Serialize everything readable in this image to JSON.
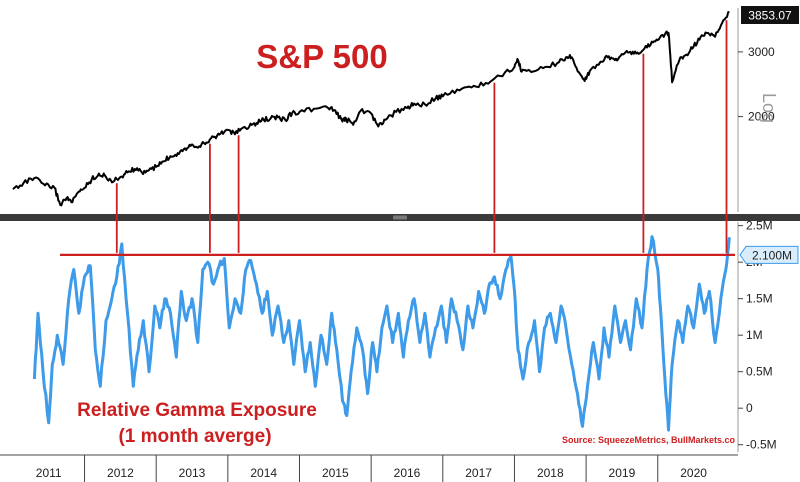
{
  "chart_data": [
    {
      "type": "line",
      "title": "S&P 500",
      "scale": "log",
      "scale_label": "Log",
      "x_categories": [
        "2011",
        "2012",
        "2013",
        "2014",
        "2015",
        "2016",
        "2017",
        "2018",
        "2019",
        "2020"
      ],
      "y_ticks": [
        {
          "value": 2000,
          "label": "2000"
        },
        {
          "value": 3000,
          "label": "3000"
        }
      ],
      "ylim": [
        1100,
        3950
      ],
      "last_value_label": "3853.07",
      "colors": {
        "line": "#000000",
        "last_value_box": "#111111"
      },
      "series": [
        {
          "x": [
            2011.0,
            2011.15,
            2011.3,
            2011.45,
            2011.58,
            2011.66,
            2011.75,
            2011.83,
            2011.92,
            2012.0,
            2012.1,
            2012.2,
            2012.3,
            2012.4,
            2012.5,
            2012.6,
            2012.7,
            2012.8,
            2012.9,
            2013.0,
            2013.1,
            2013.2,
            2013.3,
            2013.4,
            2013.5,
            2013.6,
            2013.7,
            2013.8,
            2013.9,
            2014.0,
            2014.1,
            2014.2,
            2014.3,
            2014.4,
            2014.5,
            2014.6,
            2014.7,
            2014.8,
            2014.9,
            2015.0,
            2015.2,
            2015.4,
            2015.5,
            2015.6,
            2015.65,
            2015.75,
            2015.85,
            2016.0,
            2016.1,
            2016.2,
            2016.35,
            2016.5,
            2016.6,
            2016.75,
            2016.9,
            2017.0,
            2017.2,
            2017.4,
            2017.6,
            2017.8,
            2018.0,
            2018.05,
            2018.1,
            2018.2,
            2018.4,
            2018.6,
            2018.72,
            2018.8,
            2018.9,
            2018.98,
            2019.05,
            2019.2,
            2019.3,
            2019.4,
            2019.5,
            2019.6,
            2019.7,
            2019.8,
            2019.9,
            2020.0,
            2020.1,
            2020.15,
            2020.2,
            2020.3,
            2020.4,
            2020.5,
            2020.6,
            2020.7,
            2020.8,
            2020.9,
            2021.0
          ],
          "values": [
            1270,
            1320,
            1360,
            1300,
            1280,
            1150,
            1200,
            1170,
            1250,
            1280,
            1350,
            1400,
            1370,
            1330,
            1370,
            1410,
            1440,
            1410,
            1430,
            1460,
            1510,
            1560,
            1590,
            1640,
            1680,
            1660,
            1700,
            1760,
            1800,
            1840,
            1790,
            1860,
            1880,
            1920,
            1960,
            1980,
            1990,
            1960,
            2050,
            2060,
            2100,
            2110,
            2080,
            1940,
            1970,
            1900,
            2070,
            2040,
            1880,
            1960,
            2060,
            2110,
            2170,
            2160,
            2240,
            2270,
            2370,
            2400,
            2470,
            2580,
            2730,
            2850,
            2650,
            2680,
            2710,
            2800,
            2900,
            2900,
            2640,
            2500,
            2660,
            2820,
            2900,
            2850,
            2960,
            2990,
            2970,
            3040,
            3140,
            3230,
            3350,
            3380,
            2480,
            2840,
            2950,
            3100,
            3300,
            3380,
            3300,
            3600,
            3853
          ]
        }
      ]
    },
    {
      "type": "line",
      "title": "Relative Gamma Exposure",
      "subtitle": "(1 month averge)",
      "source": "Source: SqueezeMetrics, BullMarkets.co",
      "x_categories": [
        "2011",
        "2012",
        "2013",
        "2014",
        "2015",
        "2016",
        "2017",
        "2018",
        "2019",
        "2020"
      ],
      "y_ticks": [
        {
          "value": -0.5,
          "label": "-0.5M"
        },
        {
          "value": 0,
          "label": "0"
        },
        {
          "value": 0.5,
          "label": "0.5M"
        },
        {
          "value": 1,
          "label": "1M"
        },
        {
          "value": 1.5,
          "label": "1.5M"
        },
        {
          "value": 2,
          "label": "2M"
        },
        {
          "value": 2.5,
          "label": "2.5M"
        }
      ],
      "ylim": [
        -0.6,
        2.55
      ],
      "reference_line": {
        "value": 2.1,
        "label": "2.100M"
      },
      "last_value": 2.34,
      "colors": {
        "line": "#3d9bea",
        "reference": "#cc1f1f",
        "label_box": "#d8ecfb",
        "label_border": "#3d9bea"
      },
      "series": [
        {
          "x": [
            2011.3,
            2011.35,
            2011.42,
            2011.5,
            2011.55,
            2011.62,
            2011.7,
            2011.78,
            2011.85,
            2011.92,
            2012.0,
            2012.08,
            2012.15,
            2012.22,
            2012.3,
            2012.38,
            2012.45,
            2012.52,
            2012.6,
            2012.68,
            2012.75,
            2012.82,
            2012.9,
            2012.98,
            2013.05,
            2013.12,
            2013.2,
            2013.28,
            2013.35,
            2013.42,
            2013.5,
            2013.58,
            2013.65,
            2013.72,
            2013.8,
            2013.88,
            2013.95,
            2014.02,
            2014.1,
            2014.18,
            2014.25,
            2014.32,
            2014.4,
            2014.48,
            2014.55,
            2014.62,
            2014.7,
            2014.78,
            2014.85,
            2014.92,
            2015.0,
            2015.08,
            2015.15,
            2015.22,
            2015.3,
            2015.38,
            2015.45,
            2015.52,
            2015.6,
            2015.66,
            2015.72,
            2015.8,
            2015.88,
            2015.95,
            2016.02,
            2016.08,
            2016.15,
            2016.22,
            2016.3,
            2016.38,
            2016.45,
            2016.52,
            2016.6,
            2016.68,
            2016.75,
            2016.82,
            2016.9,
            2016.98,
            2017.05,
            2017.12,
            2017.2,
            2017.28,
            2017.35,
            2017.42,
            2017.5,
            2017.58,
            2017.65,
            2017.72,
            2017.8,
            2017.88,
            2017.95,
            2018.0,
            2018.05,
            2018.12,
            2018.2,
            2018.28,
            2018.35,
            2018.42,
            2018.5,
            2018.58,
            2018.65,
            2018.72,
            2018.8,
            2018.88,
            2018.95,
            2019.02,
            2019.1,
            2019.18,
            2019.25,
            2019.32,
            2019.4,
            2019.48,
            2019.55,
            2019.62,
            2019.7,
            2019.78,
            2019.85,
            2019.92,
            2020.0,
            2020.05,
            2020.1,
            2020.15,
            2020.2,
            2020.28,
            2020.35,
            2020.42,
            2020.5,
            2020.58,
            2020.65,
            2020.72,
            2020.8,
            2020.88,
            2020.95,
            2021.0
          ],
          "values": [
            0.4,
            1.3,
            0.5,
            -0.2,
            0.6,
            1.0,
            0.6,
            1.5,
            1.9,
            1.3,
            1.8,
            1.95,
            0.8,
            0.3,
            1.2,
            1.5,
            1.8,
            2.25,
            1.3,
            0.3,
            0.8,
            1.2,
            0.5,
            1.4,
            1.1,
            1.5,
            1.3,
            0.7,
            1.6,
            1.2,
            1.5,
            0.9,
            1.9,
            2.0,
            1.7,
            1.95,
            2.05,
            1.1,
            1.5,
            1.3,
            1.9,
            2.02,
            1.7,
            1.3,
            1.6,
            1.0,
            1.4,
            0.9,
            1.2,
            0.6,
            1.2,
            0.5,
            0.9,
            0.3,
            1.0,
            0.6,
            1.3,
            0.8,
            0.1,
            -0.1,
            0.5,
            1.1,
            0.8,
            0.2,
            0.9,
            0.5,
            1.1,
            1.4,
            0.9,
            1.3,
            0.7,
            1.2,
            1.5,
            0.9,
            1.3,
            0.7,
            1.1,
            1.4,
            0.9,
            1.5,
            1.2,
            0.8,
            1.4,
            1.1,
            1.6,
            1.3,
            1.7,
            1.8,
            1.5,
            1.9,
            2.08,
            1.6,
            0.8,
            0.4,
            0.9,
            1.2,
            0.5,
            1.1,
            1.3,
            0.9,
            1.4,
            1.1,
            0.6,
            0.2,
            -0.25,
            0.3,
            0.9,
            0.4,
            1.1,
            0.7,
            1.4,
            0.9,
            1.2,
            0.8,
            1.5,
            1.1,
            1.9,
            2.35,
            1.9,
            1.2,
            0.4,
            -0.3,
            0.6,
            1.2,
            0.9,
            1.4,
            1.1,
            1.7,
            1.3,
            1.6,
            0.9,
            1.5,
            1.9,
            2.34
          ]
        }
      ]
    }
  ],
  "annotations": {
    "spike_years": [
      2012.45,
      2013.75,
      2014.15,
      2017.72,
      2019.8,
      2020.96
    ]
  },
  "colors": {
    "annotation_red": "#cc1f1f",
    "divider": "#3a3a3a",
    "grid_gray": "#999999"
  }
}
